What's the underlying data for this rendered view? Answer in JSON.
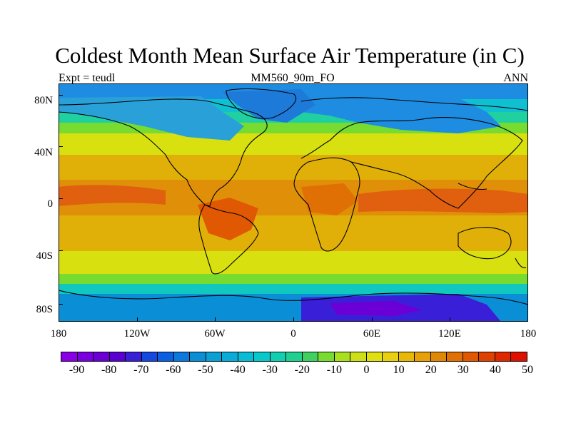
{
  "title": "Coldest Month Mean Surface Air Temperature (in C)",
  "left_label": "Expt = teudl",
  "center_label": "MM560_90m_FO",
  "right_label": "ANN",
  "y_ticks": [
    "80N",
    "40N",
    "0",
    "40S",
    "80S"
  ],
  "x_ticks": [
    "180",
    "120W",
    "60W",
    "0",
    "60E",
    "120E",
    "180"
  ],
  "colorbar": {
    "labels": [
      "-90",
      "-80",
      "-70",
      "-60",
      "-50",
      "-40",
      "-30",
      "-20",
      "-10",
      "0",
      "10",
      "20",
      "30",
      "40",
      "50"
    ],
    "colors": [
      "#8a00e6",
      "#7a00e0",
      "#6b00d6",
      "#5a00d0",
      "#3a1fd8",
      "#1448e0",
      "#0a60e0",
      "#0a78dc",
      "#0a8fd6",
      "#0aa0d4",
      "#08acd8",
      "#08bcd6",
      "#08c8cc",
      "#10d0b0",
      "#20d090",
      "#40d060",
      "#78dc30",
      "#a8e020",
      "#cce018",
      "#e0e010",
      "#e8d010",
      "#e8b808",
      "#e8a008",
      "#e08806",
      "#e07004",
      "#e05802",
      "#e04000",
      "#e02800",
      "#e01000"
    ]
  },
  "map": {
    "projection": "cylindrical-equidistant",
    "lon_range": [
      -180,
      180
    ],
    "lat_range": [
      -90,
      90
    ],
    "description_colors": {
      "arctic": "#1e8ce0",
      "antarctic": "#2a20c8",
      "tropics": "#e06010",
      "subtropics": "#e0a010",
      "midlat": "#e0e010"
    }
  }
}
